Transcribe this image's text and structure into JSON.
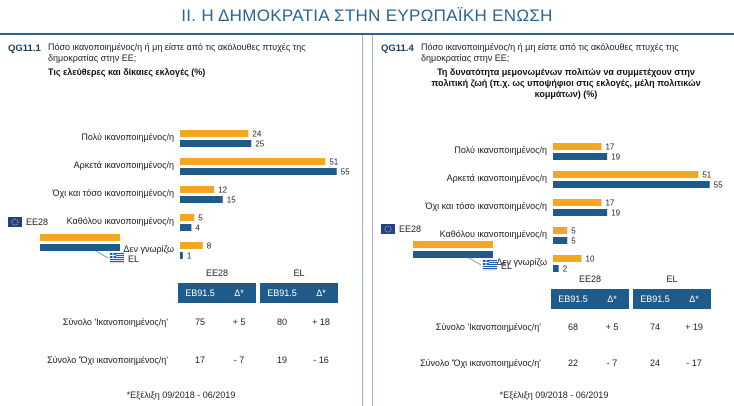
{
  "header": {
    "title": "II. Η ΔΗΜΟΚΡΑΤΙΑ ΣΤΗΝ ΕΥΡΩΠΑΪΚΗ ΕΝΩΣΗ"
  },
  "legend": {
    "eu_label": "EE28",
    "el_label": "EL",
    "eu_color": "#f5a623",
    "el_color": "#1f5b8a"
  },
  "panels": [
    {
      "qid": "QG11.1",
      "question": "Πόσο ικανοποιημένος/η ή μη είστε από τις ακόλουθες πτυχές της δημοκρατίας στην ΕΕ;",
      "subtitle": "Τις ελεύθερες και δίκαιες εκλογές  (%)",
      "table": {
        "group_eu": "EE28",
        "group_el": "EL",
        "col_eb": "EB91.5",
        "col_delta": "Δ*",
        "rows": [
          {
            "label": "Σύνολο 'Ικανοποιημένος/η'",
            "eu": "75",
            "eu_d": "+ 5",
            "el": "80",
            "el_d": "+ 18"
          },
          {
            "label": "Σύνολο 'Όχι ικανοποιημένος/η'",
            "eu": "17",
            "eu_d": "- 7",
            "el": "19",
            "el_d": "- 16"
          }
        ]
      },
      "footnote": "*Εξέλιξη 09/2018 - 06/2019"
    },
    {
      "qid": "QG11.4",
      "question": "Πόσο ικανοποιημένος/η ή μη είστε από τις ακόλουθες πτυχές της δημοκρατίας στην ΕΕ;",
      "subtitle": "Τη δυνατότητα μεμονωμένων πολιτών να συμμετέχουν στην πολιτική ζωή (π.χ. ως υποψήφιοι στις εκλογές, μέλη πολιτικών κομμάτων)  (%)",
      "table": {
        "group_eu": "EE28",
        "group_el": "EL",
        "col_eb": "EB91.5",
        "col_delta": "Δ*",
        "rows": [
          {
            "label": "Σύνολο 'Ικανοποιημένος/η'",
            "eu": "68",
            "eu_d": "+ 5",
            "el": "74",
            "el_d": "+ 19"
          },
          {
            "label": "Σύνολο 'Όχι ικανοποιημένος/η'",
            "eu": "22",
            "eu_d": "- 7",
            "el": "24",
            "el_d": "- 17"
          }
        ]
      },
      "footnote": "*Εξέλιξη 09/2018 - 06/2019"
    }
  ],
  "chart_data": [
    {
      "type": "bar",
      "orientation": "horizontal",
      "categories": [
        "Πολύ ικανοποιημένος/η",
        "Αρκετά ικανοποιημένος/η",
        "Όχι και τόσο ικανοποιημένος/η",
        "Καθόλου ικανοποιημένος/η",
        "Δεν γνωρίζω"
      ],
      "series": [
        {
          "name": "EE28",
          "values": [
            24,
            51,
            12,
            5,
            8
          ]
        },
        {
          "name": "EL",
          "values": [
            25,
            55,
            15,
            4,
            1
          ]
        }
      ],
      "title": "Τις ελεύθερες και δίκαιες εκλογές  (%)",
      "xlim": [
        0,
        60
      ]
    },
    {
      "type": "bar",
      "orientation": "horizontal",
      "categories": [
        "Πολύ ικανοποιημένος/η",
        "Αρκετά ικανοποιημένος/η",
        "Όχι και τόσο ικανοποιημένος/η",
        "Καθόλου ικανοποιημένος/η",
        "Δεν γνωρίζω"
      ],
      "series": [
        {
          "name": "EE28",
          "values": [
            17,
            51,
            17,
            5,
            10
          ]
        },
        {
          "name": "EL",
          "values": [
            19,
            55,
            19,
            5,
            2
          ]
        }
      ],
      "title": "Τη δυνατότητα μεμονωμένων πολιτών να συμμετέχουν στην πολιτική ζωή (π.χ. ως υποψήφιοι στις εκλογές, μέλη πολιτικών κομμάτων)  (%)",
      "xlim": [
        0,
        60
      ]
    }
  ]
}
